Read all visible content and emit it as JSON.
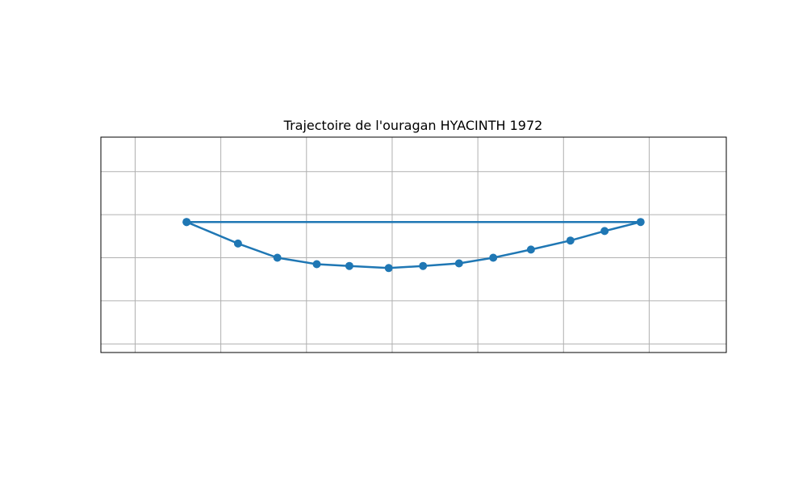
{
  "chart_data": {
    "type": "line",
    "title": "Trajectoire de l'ouragan HYACINTH 1972",
    "xlabel": "",
    "ylabel": "",
    "xlim": [
      -130.4,
      -93.9
    ],
    "ylim": [
      16.4,
      21.4
    ],
    "x_gridlines": [
      -128.4,
      -123.4,
      -118.4,
      -113.4,
      -108.4,
      -103.4,
      -98.4
    ],
    "y_gridlines": [
      16.6,
      17.6,
      18.6,
      19.6,
      20.6
    ],
    "grid": true,
    "tick_labels_visible": false,
    "series": [
      {
        "color": "#1f77b4",
        "marker": "circle",
        "points": [
          {
            "x": -125.4,
            "y": 19.43
          },
          {
            "x": -122.4,
            "y": 18.93
          },
          {
            "x": -120.1,
            "y": 18.6
          },
          {
            "x": -117.8,
            "y": 18.45
          },
          {
            "x": -115.9,
            "y": 18.41
          },
          {
            "x": -113.6,
            "y": 18.36
          },
          {
            "x": -111.6,
            "y": 18.41
          },
          {
            "x": -109.5,
            "y": 18.47
          },
          {
            "x": -107.5,
            "y": 18.6
          },
          {
            "x": -105.3,
            "y": 18.79
          },
          {
            "x": -103.0,
            "y": 19.0
          },
          {
            "x": -101.0,
            "y": 19.22
          },
          {
            "x": -98.9,
            "y": 19.43
          },
          {
            "x": -125.4,
            "y": 19.43
          }
        ]
      }
    ]
  }
}
